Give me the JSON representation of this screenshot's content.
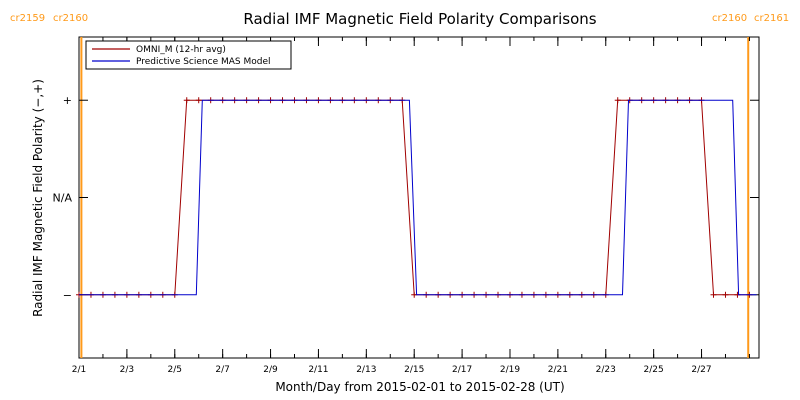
{
  "chart_data": {
    "type": "line",
    "title": "Radial IMF Magnetic Field Polarity Comparisons",
    "xlabel": "Month/Day from 2015-02-01 to 2015-02-28 (UT)",
    "ylabel": "Radial IMF Magnetic Field Polarity (−,+)",
    "x_unit": "day of February 2015",
    "xlim": [
      1,
      29.4
    ],
    "ylim": [
      -1.65,
      1.65
    ],
    "x_ticks": [
      {
        "x": 1,
        "label": "2/1"
      },
      {
        "x": 3,
        "label": "2/3"
      },
      {
        "x": 5,
        "label": "2/5"
      },
      {
        "x": 7,
        "label": "2/7"
      },
      {
        "x": 9,
        "label": "2/9"
      },
      {
        "x": 11,
        "label": "2/11"
      },
      {
        "x": 13,
        "label": "2/13"
      },
      {
        "x": 15,
        "label": "2/15"
      },
      {
        "x": 17,
        "label": "2/17"
      },
      {
        "x": 19,
        "label": "2/19"
      },
      {
        "x": 21,
        "label": "2/21"
      },
      {
        "x": 23,
        "label": "2/23"
      },
      {
        "x": 25,
        "label": "2/25"
      },
      {
        "x": 27,
        "label": "2/27"
      }
    ],
    "y_ticks": [
      {
        "y": 1,
        "label": "+"
      },
      {
        "y": 0,
        "label": "N/A"
      },
      {
        "y": -1,
        "label": "−"
      }
    ],
    "carrington_lines": [
      {
        "x": 1.1,
        "left_label": "cr2159",
        "right_label": "cr2160",
        "side": "left"
      },
      {
        "x": 28.95,
        "left_label": "cr2160",
        "right_label": "cr2161",
        "side": "right"
      }
    ],
    "series": [
      {
        "name": "OMNI_M (12-hr avg)",
        "color": "#a00000",
        "markers": true,
        "points": [
          [
            1.0,
            -1
          ],
          [
            1.5,
            -1
          ],
          [
            2.0,
            -1
          ],
          [
            2.5,
            -1
          ],
          [
            3.0,
            -1
          ],
          [
            3.5,
            -1
          ],
          [
            4.0,
            -1
          ],
          [
            4.5,
            -1
          ],
          [
            5.0,
            -1
          ],
          [
            5.5,
            1
          ],
          [
            6.0,
            1
          ],
          [
            6.5,
            1
          ],
          [
            7.0,
            1
          ],
          [
            7.5,
            1
          ],
          [
            8.0,
            1
          ],
          [
            8.5,
            1
          ],
          [
            9.0,
            1
          ],
          [
            9.5,
            1
          ],
          [
            10.0,
            1
          ],
          [
            10.5,
            1
          ],
          [
            11.0,
            1
          ],
          [
            11.5,
            1
          ],
          [
            12.0,
            1
          ],
          [
            12.5,
            1
          ],
          [
            13.0,
            1
          ],
          [
            13.5,
            1
          ],
          [
            14.0,
            1
          ],
          [
            14.5,
            1
          ],
          [
            15.0,
            -1
          ],
          [
            15.5,
            -1
          ],
          [
            16.0,
            -1
          ],
          [
            16.5,
            -1
          ],
          [
            17.0,
            -1
          ],
          [
            17.5,
            -1
          ],
          [
            18.0,
            -1
          ],
          [
            18.5,
            -1
          ],
          [
            19.0,
            -1
          ],
          [
            19.5,
            -1
          ],
          [
            20.0,
            -1
          ],
          [
            20.5,
            -1
          ],
          [
            21.0,
            -1
          ],
          [
            21.5,
            -1
          ],
          [
            22.0,
            -1
          ],
          [
            22.5,
            -1
          ],
          [
            23.0,
            -1
          ],
          [
            23.5,
            1
          ],
          [
            24.0,
            1
          ],
          [
            24.5,
            1
          ],
          [
            25.0,
            1
          ],
          [
            25.5,
            1
          ],
          [
            26.0,
            1
          ],
          [
            26.5,
            1
          ],
          [
            27.0,
            1
          ],
          [
            27.5,
            -1
          ],
          [
            28.0,
            -1
          ],
          [
            28.5,
            -1
          ],
          [
            29.0,
            -1
          ]
        ]
      },
      {
        "name": "Predictive Science MAS Model",
        "color": "#0000cc",
        "markers": false,
        "points": [
          [
            1.0,
            -1
          ],
          [
            5.9,
            -1
          ],
          [
            6.15,
            1
          ],
          [
            14.8,
            1
          ],
          [
            15.1,
            -1
          ],
          [
            23.7,
            -1
          ],
          [
            23.95,
            1
          ],
          [
            28.3,
            1
          ],
          [
            28.55,
            -1
          ],
          [
            29.3,
            -1
          ]
        ]
      }
    ],
    "legend_position": "top-left",
    "grid": false
  }
}
